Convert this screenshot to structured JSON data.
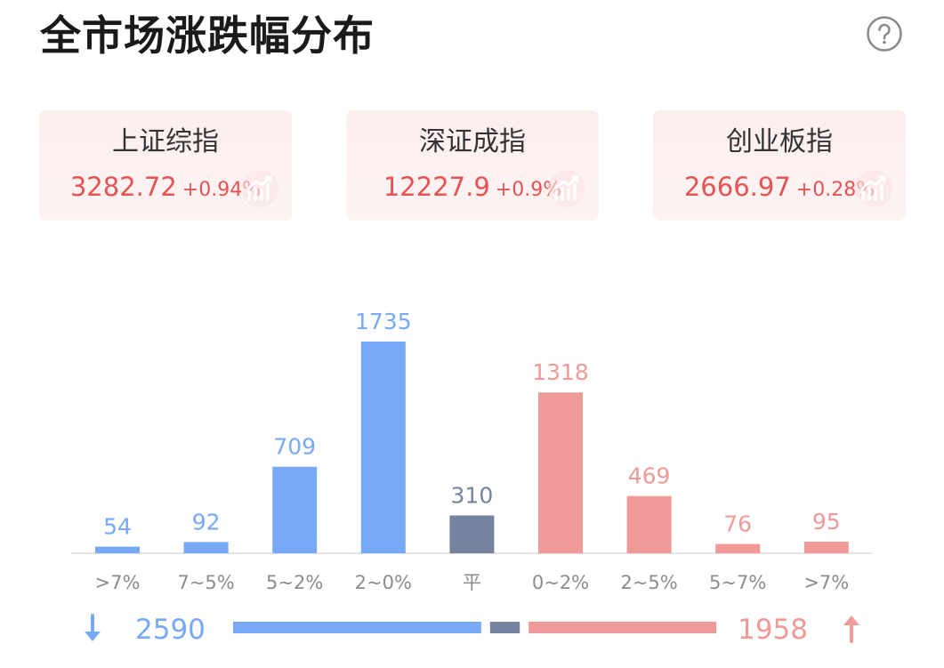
{
  "title": "全市场涨跌幅分布",
  "indices": [
    {
      "name": "上证综指",
      "value": "3282.72",
      "change": "+0.94%"
    },
    {
      "name": "深证成指",
      "value": "12227.9",
      "change": "+0.9%"
    },
    {
      "name": "创业板指",
      "value": "2666.97",
      "change": "+0.28%"
    }
  ],
  "colors": {
    "down": "#78a9f7",
    "flat": "#76839f",
    "up": "#ef9a98",
    "index_text": "#e65353"
  },
  "chart_data": {
    "type": "bar",
    "categories": [
      ">7%",
      "7~5%",
      "5~2%",
      "2~0%",
      "平",
      "0~2%",
      "2~5%",
      "5~7%",
      ">7%"
    ],
    "values": [
      54,
      92,
      709,
      1735,
      310,
      1318,
      469,
      76,
      95
    ],
    "groups": [
      "down",
      "down",
      "down",
      "down",
      "flat",
      "up",
      "up",
      "up",
      "up"
    ]
  },
  "summary": {
    "down_total": "2590",
    "flat_total": 310,
    "up_total": "1958"
  },
  "icons": {
    "help": "help-circle-icon",
    "down": "arrow-down-icon",
    "up": "arrow-up-icon",
    "card_decor": "trend-up-icon"
  }
}
